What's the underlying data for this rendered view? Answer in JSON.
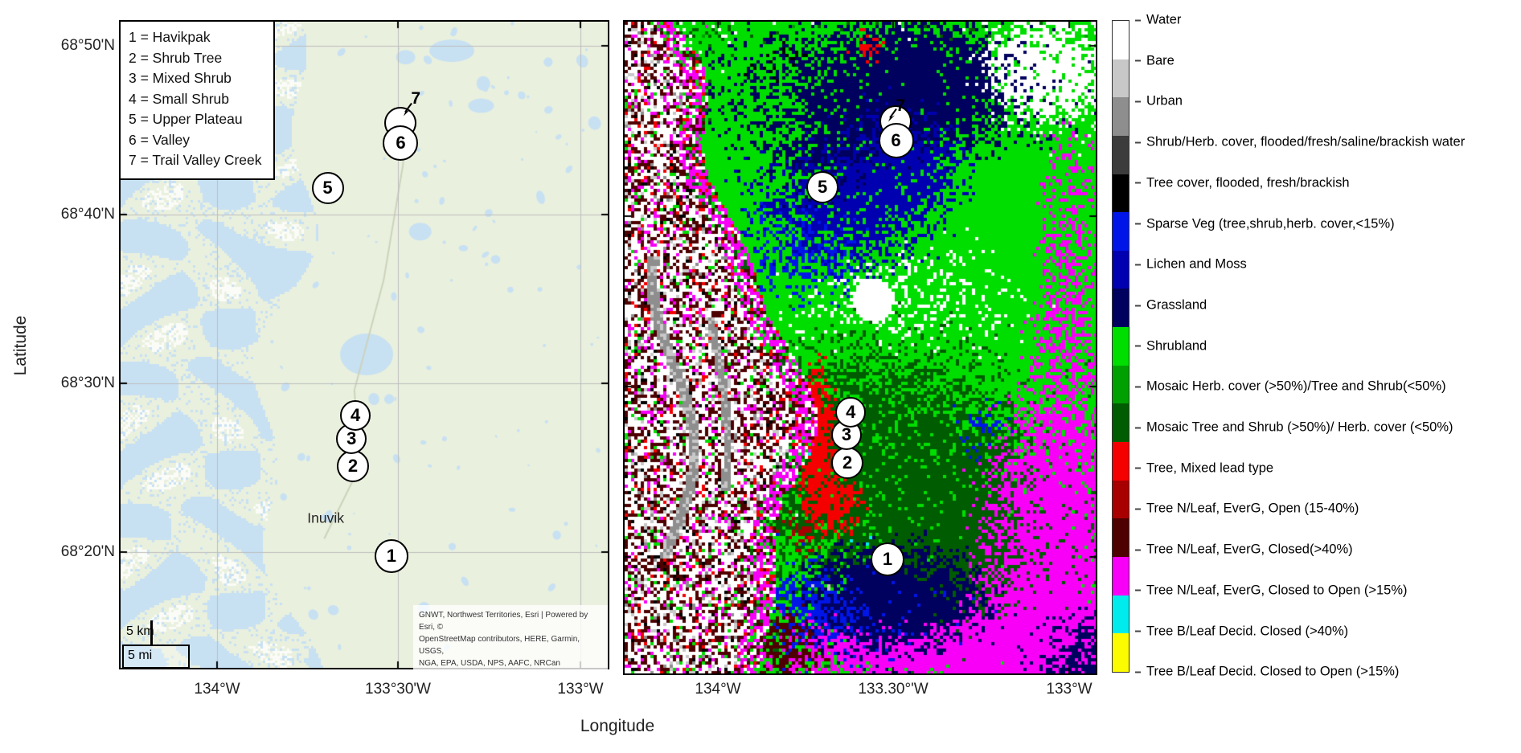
{
  "axes": {
    "xlabel": "Longitude",
    "ylabel": "Latitude"
  },
  "left_map": {
    "lat_tick_labels": [
      "68°50'N",
      "68°40'N",
      "68°30'N",
      "68°20'N"
    ],
    "lon_tick_labels": [
      "134°W",
      "133°30'W",
      "133°W"
    ],
    "site_legend_lines": [
      "1 = Havikpak",
      "2 = Shrub Tree",
      "3 = Mixed Shrub",
      "4 = Small Shrub",
      "5 = Upper Plateau",
      "6 = Valley",
      "7 = Trail Valley Creek"
    ],
    "city_label": "Inuvik",
    "scale_bar": {
      "km": "5 km",
      "mi": "5 mi"
    },
    "attribution_lines": [
      "GNWT, Northwest Territories, Esri | Powered by Esri, ©",
      "OpenStreetMap contributors, HERE, Garmin, USGS,",
      "NGA, EPA, USDA, NPS, AAFC, NRCan"
    ],
    "markers": [
      {
        "label": "1",
        "x": 55.6,
        "y": 82.7,
        "size": 42
      },
      {
        "label": "7",
        "x": 57.5,
        "y": 15.7,
        "size": 40,
        "empty": true,
        "ext_label": {
          "x": 60.6,
          "y": 11.9
        },
        "arrow": {
          "x": 58.7,
          "y": 13.9
        }
      },
      {
        "label": "6",
        "x": 57.5,
        "y": 18.8,
        "size": 44
      },
      {
        "label": "5",
        "x": 42.5,
        "y": 25.7,
        "size": 40
      },
      {
        "label": "2",
        "x": 47.7,
        "y": 68.8,
        "size": 40
      },
      {
        "label": "3",
        "x": 47.4,
        "y": 64.5,
        "size": 38
      },
      {
        "label": "4",
        "x": 48.2,
        "y": 61.0,
        "size": 38
      }
    ]
  },
  "right_map": {
    "lon_tick_labels": [
      "134°W",
      "133.30°'W",
      "133°W"
    ],
    "markers": [
      {
        "label": "1",
        "x": 55.8,
        "y": 82.5,
        "size": 42
      },
      {
        "label": "7",
        "x": 57.5,
        "y": 15.3,
        "size": 40,
        "empty": true,
        "ext_label": {
          "x": 58.6,
          "y": 13.0
        },
        "arrow": {
          "x": 56.7,
          "y": 14.7
        }
      },
      {
        "label": "6",
        "x": 57.6,
        "y": 18.3,
        "size": 44
      },
      {
        "label": "5",
        "x": 42.0,
        "y": 25.4,
        "size": 40
      },
      {
        "label": "2",
        "x": 47.3,
        "y": 67.7,
        "size": 40
      },
      {
        "label": "3",
        "x": 47.1,
        "y": 63.4,
        "size": 38
      },
      {
        "label": "4",
        "x": 48.0,
        "y": 59.9,
        "size": 38
      }
    ]
  },
  "landcover_legend": {
    "classes": [
      {
        "label": "Water",
        "color": "#FFFFFF"
      },
      {
        "label": "Bare",
        "color": "#C8C8C8"
      },
      {
        "label": "Urban",
        "color": "#8E8E8E"
      },
      {
        "label": "Shrub/Herb. cover, flooded/fresh/saline/brackish water",
        "color": "#3C3C3C"
      },
      {
        "label": "Tree cover, flooded, fresh/brackish",
        "color": "#000000"
      },
      {
        "label": "Sparse Veg (tree,shrub,herb. cover,<15%)",
        "color": "#0016E8"
      },
      {
        "label": "Lichen and Moss",
        "color": "#0000B0"
      },
      {
        "label": "Grassland",
        "color": "#00005E"
      },
      {
        "label": "Shrubland",
        "color": "#00DE00"
      },
      {
        "label": "Mosaic Herb. cover (>50%)/Tree and Shrub(<50%)",
        "color": "#00A000"
      },
      {
        "label": "Mosaic Tree and Shrub (>50%)/ Herb. cover (<50%)",
        "color": "#005C00"
      },
      {
        "label": "Tree, Mixed lead type",
        "color": "#F40000"
      },
      {
        "label": "Tree N/Leaf, EverG, Open (15-40%)",
        "color": "#A80000"
      },
      {
        "label": "Tree N/Leaf, EverG, Closed(>40%)",
        "color": "#4E0000"
      },
      {
        "label": "Tree N/Leaf, EverG, Closed to Open (>15%)",
        "color": "#F800F8"
      },
      {
        "label": "Tree B/Leaf Decid. Closed (>40%)",
        "color": "#00ECEC"
      },
      {
        "label": "Tree B/Leaf Decid. Closed to Open (>15%)",
        "color": "#FCFC00"
      }
    ]
  },
  "basemap_colors": {
    "land": "#EAF0DE",
    "water": "#C7E1F3",
    "white": "#FBFCF8",
    "grid": "#BDBDBD",
    "road": "#CCD3BC"
  }
}
